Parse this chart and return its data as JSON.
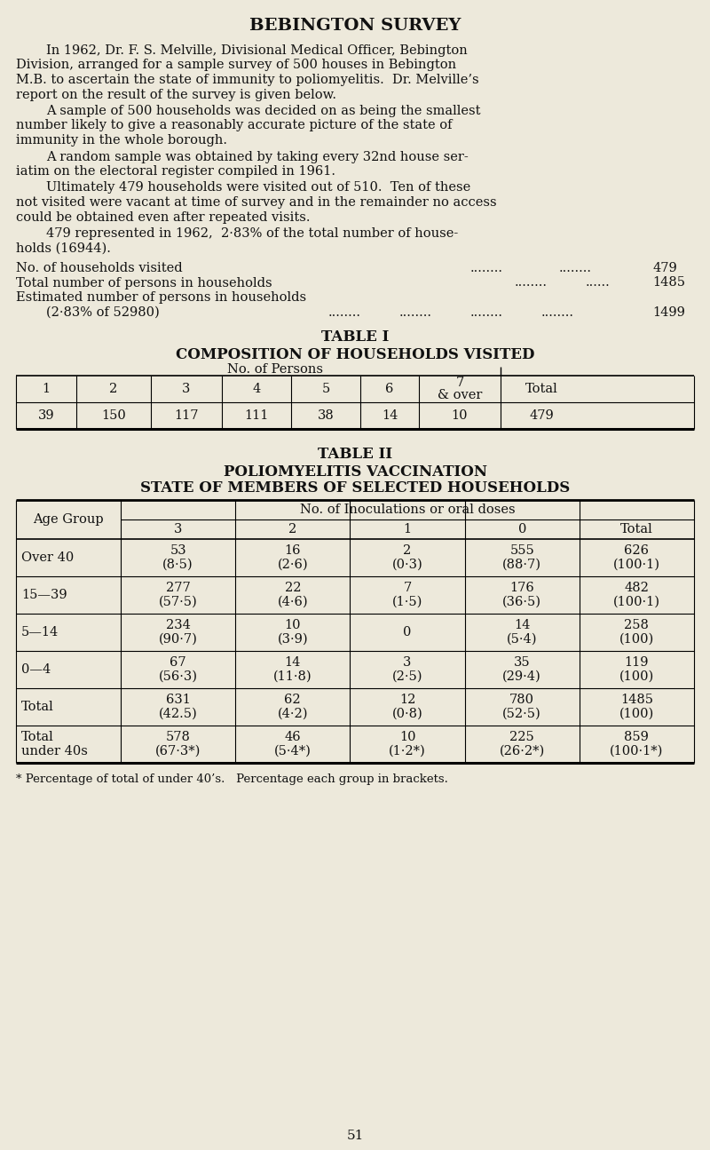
{
  "bg_color": "#ede9db",
  "title": "BEBINGTON SURVEY",
  "para1_line1": "In 1962, Dr. F. S. Melville, Divisional Medical Officer, Bebington",
  "para1_line2": "Division, arranged for a sample survey of 500 houses in Bebington",
  "para1_line3": "M.B. to ascertain the state of immunity to poliomyelitis.  Dr. Melville’s",
  "para1_line4": "report on the result of the survey is given below.",
  "para2_line1": "A sample of 500 households was decided on as being the smallest",
  "para2_line2": "number likely to give a reasonably accurate picture of the state of",
  "para2_line3": "immunity in the whole borough.",
  "para3_line1": "A random sample was obtained by taking every 32nd house ser-",
  "para3_line2": "iatim on the electoral register compiled in 1961.",
  "para4_line1": "Ultimately 479 households were visited out of 510.  Ten of these",
  "para4_line2": "not visited were vacant at time of survey and in the remainder no access",
  "para4_line3": "could be obtained even after repeated visits.",
  "para5_line1": "479 represented in 1962,  2·83% of the total number of house-",
  "para5_line2": "holds (16944).",
  "stat1_label": "No. of households visited",
  "stat1_dots": "........ ........ ........",
  "stat1_val": "479",
  "stat2_label": "Total number of persons in households",
  "stat2_dots": "........ ........",
  "stat2_val": "1485",
  "stat3_label1": "Estimated number of persons in households",
  "stat3_label2": "(2·83% of 52980)",
  "stat3_dots": "........ ........ ........ ........",
  "stat3_val": "1499",
  "table1_title": "TABLE I",
  "table1_subtitle": "COMPOSITION OF HOUSEHOLDS VISITED",
  "table1_col_header": "No. of Persons",
  "table1_cols": [
    "1",
    "2",
    "3",
    "4",
    "5",
    "6",
    "7\n& over",
    "Total"
  ],
  "table1_values": [
    "39",
    "150",
    "117",
    "111",
    "38",
    "14",
    "10",
    "479"
  ],
  "table2_title": "TABLE II",
  "table2_subtitle1": "POLIOMYELITIS VACCINATION",
  "table2_subtitle2": "STATE OF MEMBERS OF SELECTED HOUSEHOLDS",
  "table2_col_header": "No. of Inoculations or oral doses",
  "table2_age_header": "Age Group",
  "table2_dose_cols": [
    "3",
    "2",
    "1",
    "0",
    "Total"
  ],
  "table2_rows": [
    [
      "Over 40",
      "53\n(8·5)",
      "16\n(2·6)",
      "2\n(0·3)",
      "555\n(88·7)",
      "626\n(100·1)"
    ],
    [
      "15—39",
      "277\n(57·5)",
      "22\n(4·6)",
      "7\n(1·5)",
      "176\n(36·5)",
      "482\n(100·1)"
    ],
    [
      "5—14",
      "234\n(90·7)",
      "10\n(3·9)",
      "0",
      "14\n(5·4)",
      "258\n(100)"
    ],
    [
      "0—4",
      "67\n(56·3)",
      "14\n(11·8)",
      "3\n(2·5)",
      "35\n(29·4)",
      "119\n(100)"
    ],
    [
      "Total",
      "631\n(42.5)",
      "62\n(4·2)",
      "12\n(0·8)",
      "780\n(52·5)",
      "1485\n(100)"
    ],
    [
      "Total\nunder 40s",
      "578\n(67·3*)",
      "46\n(5·4*)",
      "10\n(1·2*)",
      "225\n(26·2*)",
      "859\n(100·1*)"
    ]
  ],
  "footnote": "* Percentage of total of under 40’s.   Percentage each group in brackets.",
  "page_number": "51",
  "font_size_body": 10.5,
  "font_size_title": 14,
  "font_size_table_title": 12,
  "font_size_table": 10.5
}
